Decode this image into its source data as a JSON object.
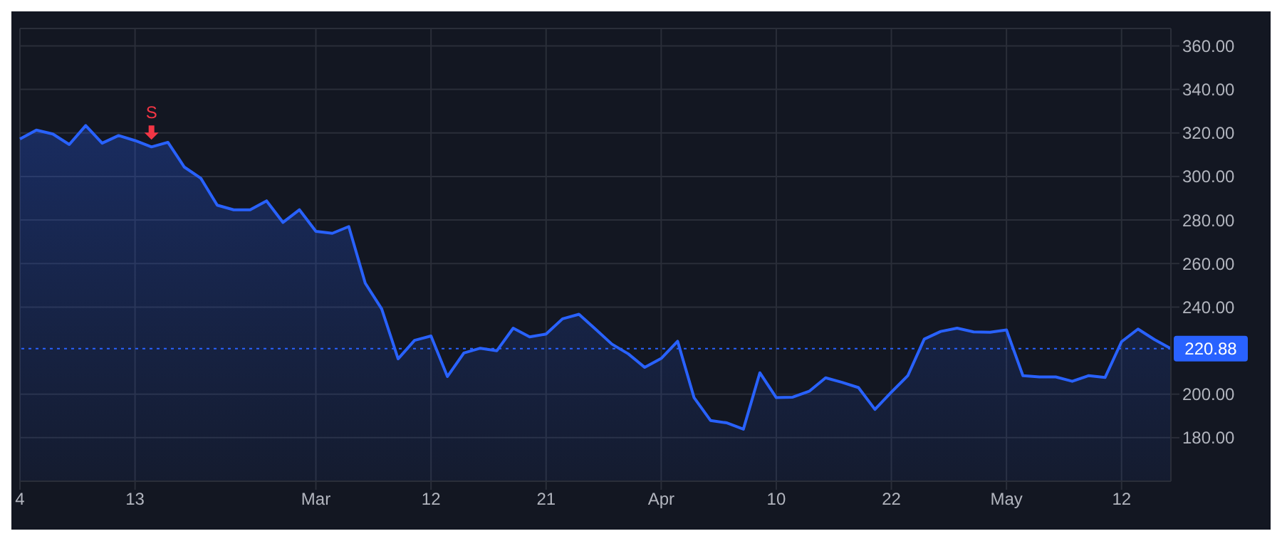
{
  "chart_data": {
    "type": "area",
    "categories": [
      "4",
      null,
      null,
      null,
      null,
      null,
      null,
      "13",
      null,
      null,
      null,
      null,
      null,
      null,
      null,
      null,
      null,
      null,
      "Mar",
      null,
      null,
      null,
      null,
      null,
      null,
      "12",
      null,
      null,
      null,
      null,
      null,
      null,
      "21",
      null,
      null,
      null,
      null,
      null,
      null,
      "Apr",
      null,
      null,
      null,
      null,
      null,
      null,
      "10",
      null,
      null,
      null,
      null,
      null,
      null,
      "22",
      null,
      null,
      null,
      null,
      null,
      null,
      "May",
      null,
      null,
      null,
      null,
      null,
      null,
      "12",
      null,
      null,
      null
    ],
    "series": [
      {
        "color": "#2962ff",
        "values": [
          317.2,
          321.3,
          319.5,
          314.7,
          323.4,
          315.3,
          318.8,
          316.5,
          313.6,
          315.7,
          304.3,
          299.2,
          286.8,
          284.7,
          284.7,
          288.8,
          278.9,
          284.7,
          274.8,
          273.9,
          277,
          251,
          239.2,
          216.2,
          224.7,
          226.7,
          208.1,
          218.9,
          221.1,
          219.9,
          230.3,
          226.3,
          227.6,
          234.6,
          236.7,
          229.9,
          223,
          218.5,
          212.3,
          216.4,
          224.3,
          198.4,
          187.9,
          186.8,
          183.9,
          209.8,
          198.4,
          198.6,
          201.3,
          207.5,
          205.4,
          203,
          193,
          200.9,
          208.5,
          225.3,
          228.8,
          230.3,
          228.6,
          228.4,
          229.5,
          208.5,
          207.9,
          207.9,
          205.9,
          208.5,
          207.7,
          224.1,
          229.9,
          225.1,
          220.9
        ]
      }
    ],
    "ylim": [
      160,
      368
    ],
    "yticks": [
      {
        "value": 180,
        "label": "180.00"
      },
      {
        "value": 200,
        "label": "200.00"
      },
      {
        "value": 240,
        "label": "240.00"
      },
      {
        "value": 260,
        "label": "260.00"
      },
      {
        "value": 280,
        "label": "280.00"
      },
      {
        "value": 300,
        "label": "300.00"
      },
      {
        "value": 320,
        "label": "320.00"
      },
      {
        "value": 340,
        "label": "340.00"
      },
      {
        "value": 360,
        "label": "360.00"
      }
    ],
    "ref_lines": [
      {
        "axis": "y",
        "value": 220.88,
        "label": "220.88",
        "color": "#2962ff",
        "line_style": "dotted"
      }
    ],
    "annotations": [
      {
        "text": "S",
        "y": 313.6
      }
    ],
    "grid": true,
    "legend": false,
    "marker": "none",
    "line_style": "solid"
  }
}
